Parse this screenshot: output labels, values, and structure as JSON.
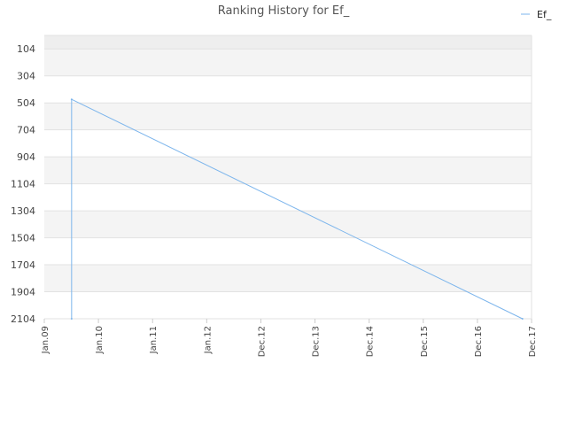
{
  "chart_data": {
    "type": "line",
    "title": "Ranking History for Ef_",
    "xlabel": "",
    "ylabel": "",
    "y_axis_inverted": true,
    "ylim": [
      4,
      2104
    ],
    "y_ticks": [
      "104",
      "304",
      "504",
      "704",
      "904",
      "1104",
      "1304",
      "1504",
      "1704",
      "1904",
      "2104"
    ],
    "x_ticks": [
      "Jan.09",
      "Jan.10",
      "Jan.11",
      "Jan.12",
      "Dec.12",
      "Dec.13",
      "Dec.14",
      "Dec.15",
      "Dec.16",
      "Dec.17"
    ],
    "grid": "alternating horizontal bands",
    "legend_position": "top-right",
    "series": [
      {
        "name": "Ef_",
        "color": "#7cb5ec",
        "points": [
          {
            "x": "2009-07",
            "y": 2104
          },
          {
            "x": "2009-07",
            "y": 478
          },
          {
            "x": "2017-10",
            "y": 2104
          }
        ]
      }
    ]
  }
}
